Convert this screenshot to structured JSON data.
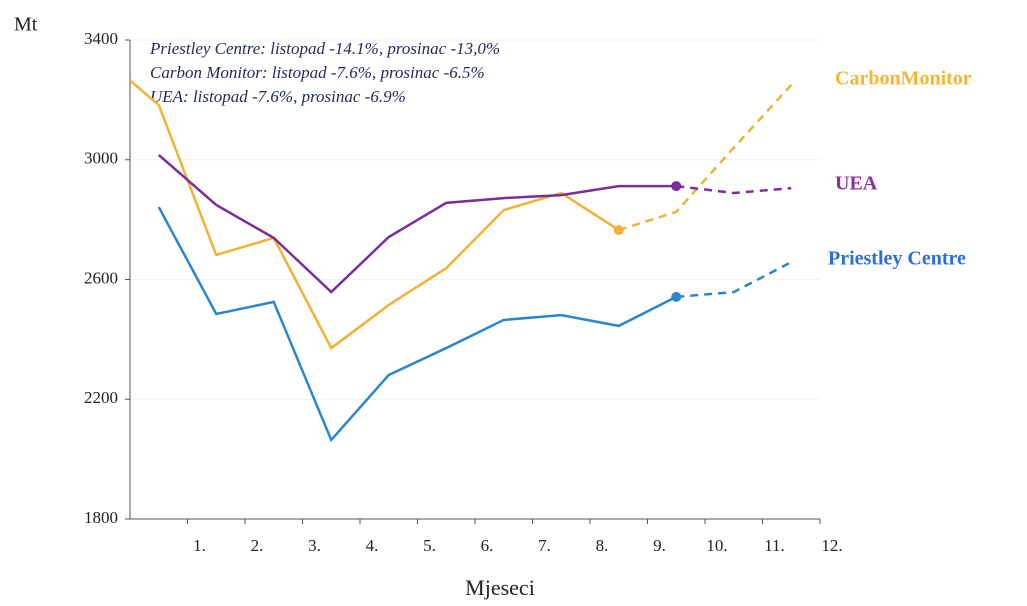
{
  "chart_data": {
    "type": "line",
    "y_label": "Mt",
    "x_label": "Mjeseci",
    "annotations": [
      "Priestley Centre: listopad -14.1%, prosinac -13,0%",
      "Carbon Monitor: listopad -7.6%, prosinac -6.5%",
      "UEA: listopad -7.6%, prosinac -6.9%"
    ],
    "x": [
      0,
      0.5,
      1.5,
      2.5,
      3.5,
      4.5,
      5.5,
      6.5,
      7.5,
      8.5,
      9.5,
      10.5,
      11.5
    ],
    "xlim": [
      0,
      12
    ],
    "xticks": [
      {
        "value": 1,
        "label": "1."
      },
      {
        "value": 2,
        "label": "2."
      },
      {
        "value": 3,
        "label": "3."
      },
      {
        "value": 4,
        "label": "4."
      },
      {
        "value": 5,
        "label": "5."
      },
      {
        "value": 6,
        "label": "6."
      },
      {
        "value": 7,
        "label": "7."
      },
      {
        "value": 8,
        "label": "8."
      },
      {
        "value": 9,
        "label": "9."
      },
      {
        "value": 10,
        "label": "10."
      },
      {
        "value": 11,
        "label": "11."
      },
      {
        "value": 12,
        "label": "12."
      }
    ],
    "ylim": [
      1800,
      3400
    ],
    "yticks": [
      1800,
      2200,
      2600,
      3000,
      3400
    ],
    "grid": true,
    "series": [
      {
        "name": "CarbonMonitor",
        "color": "#f2b134",
        "label_color": "#f5b731",
        "projection_start": 9,
        "values": [
          3265,
          3183,
          2682,
          2739,
          2371,
          2515,
          2638,
          2832,
          2889,
          2765,
          2826,
          3040,
          3250
        ]
      },
      {
        "name": "UEA",
        "color": "#7b2d9b",
        "label_color": "#8e2fa0",
        "projection_start": 10,
        "values": [
          null,
          3016,
          2849,
          2739,
          2558,
          2742,
          2856,
          2872,
          2882,
          2912,
          2912,
          2889,
          2905
        ]
      },
      {
        "name": "Priestley Centre",
        "color": "#2a86d1",
        "label_color": "#2d6fd6",
        "projection_start": 10,
        "values": [
          null,
          2842,
          2485,
          2525,
          2064,
          2281,
          2371,
          2465,
          2481,
          2445,
          2542,
          2558,
          2658
        ]
      }
    ]
  }
}
